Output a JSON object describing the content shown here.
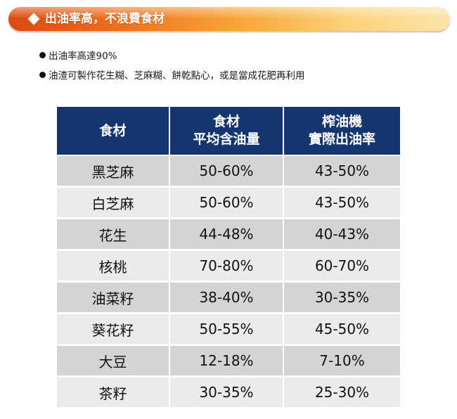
{
  "banner": {
    "title": "出油率高，不浪費食材"
  },
  "bullets": [
    "出油率高達90%",
    "油渣可製作花生糊、芝麻糊、餅乾點心，或是當成花肥再利用"
  ],
  "table": {
    "headers": [
      {
        "line1": "食材",
        "line2": ""
      },
      {
        "line1": "食材",
        "line2": "平均含油量"
      },
      {
        "line1": "榨油機",
        "line2": "實際出油率"
      }
    ],
    "rows": [
      {
        "name": "黑芝麻",
        "avg": "50-60%",
        "actual": "43-50%"
      },
      {
        "name": "白芝麻",
        "avg": "50-60%",
        "actual": "43-50%"
      },
      {
        "name": "花生",
        "avg": "44-48%",
        "actual": "40-43%"
      },
      {
        "name": "核桃",
        "avg": "70-80%",
        "actual": "60-70%"
      },
      {
        "name": "油菜籽",
        "avg": "38-40%",
        "actual": "30-35%"
      },
      {
        "name": "葵花籽",
        "avg": "50-55%",
        "actual": "45-50%"
      },
      {
        "name": "大豆",
        "avg": "12-18%",
        "actual": "7-10%"
      },
      {
        "name": "茶籽",
        "avg": "30-35%",
        "actual": "25-30%"
      }
    ]
  },
  "colors": {
    "header_bg": "#15356e",
    "row_dark": "#d4d4d4",
    "row_light": "#ebebeb",
    "banner_start": "#d94a12",
    "banner_end": "#fbe4a8"
  }
}
